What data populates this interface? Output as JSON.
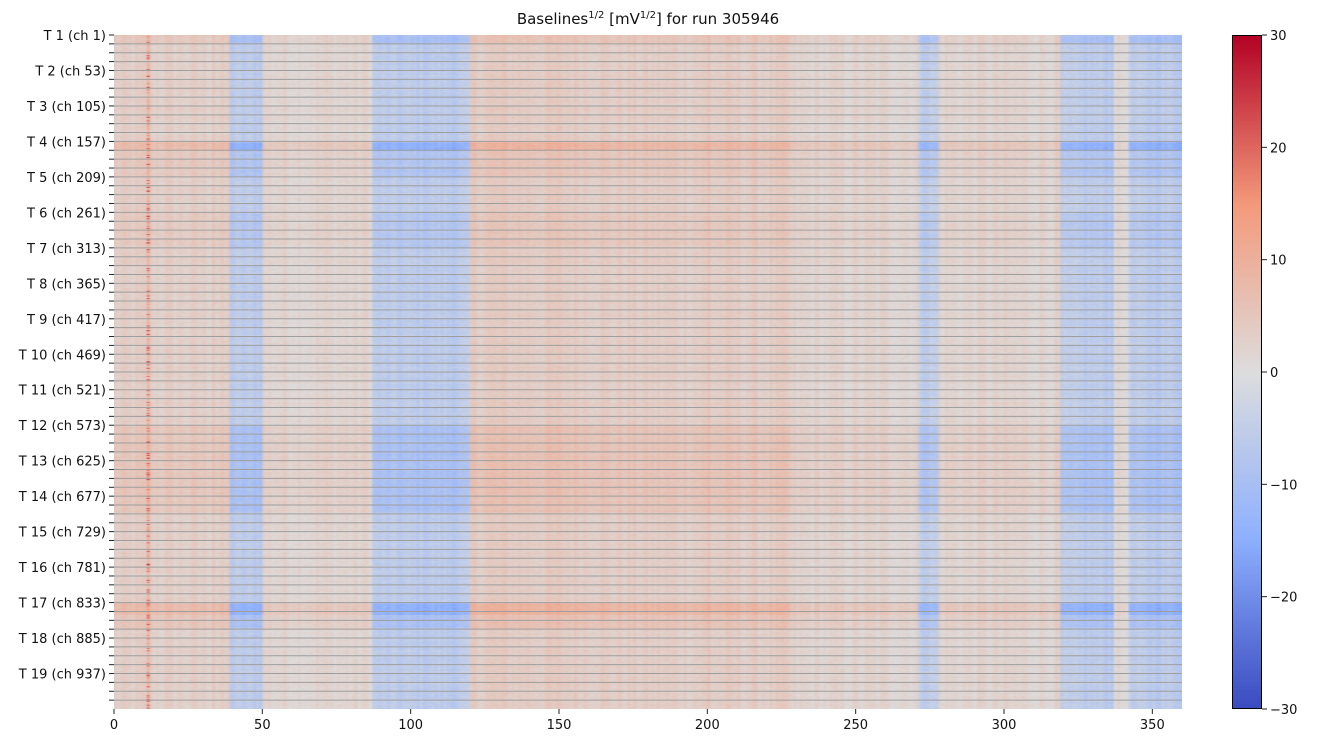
{
  "chart_data": {
    "type": "heatmap",
    "title": {
      "prefix": "Baselines",
      "sup1": "1/2",
      "mid": " [mV",
      "sup2": "1/2",
      "suffix": "] for run 305946"
    },
    "xlabel": "",
    "ylabel": "",
    "xlim": [
      0,
      360
    ],
    "x_ticks": [
      0,
      50,
      100,
      150,
      200,
      250,
      300,
      350
    ],
    "n_channels": 988,
    "channels_per_minor_tick": 13,
    "y_tick_labels": [
      "T 1 (ch 1)",
      "T 2 (ch 53)",
      "T 3 (ch 105)",
      "T 4 (ch 157)",
      "T 5 (ch 209)",
      "T 6 (ch 261)",
      "T 7 (ch 313)",
      "T 8 (ch 365)",
      "T 9 (ch 417)",
      "T 10 (ch 469)",
      "T 11 (ch 521)",
      "T 12 (ch 573)",
      "T 13 (ch 625)",
      "T 14 (ch 677)",
      "T 15 (ch 729)",
      "T 16 (ch 781)",
      "T 17 (ch 833)",
      "T 18 (ch 885)",
      "T 19 (ch 937)"
    ],
    "colormap": "coolwarm",
    "vmin": -30,
    "vmax": 30,
    "colorbar_ticks": [
      30,
      20,
      10,
      0,
      -10,
      -20,
      -30
    ],
    "column_bands": [
      {
        "from": 0,
        "to": 39,
        "value": 3
      },
      {
        "from": 39,
        "to": 50,
        "value": -6
      },
      {
        "from": 50,
        "to": 87,
        "value": 2
      },
      {
        "from": 87,
        "to": 120,
        "value": -6
      },
      {
        "from": 120,
        "to": 165,
        "value": 4
      },
      {
        "from": 165,
        "to": 228,
        "value": 3.5
      },
      {
        "from": 228,
        "to": 271,
        "value": 2
      },
      {
        "from": 271,
        "to": 278,
        "value": -5
      },
      {
        "from": 278,
        "to": 319,
        "value": 2
      },
      {
        "from": 319,
        "to": 337,
        "value": -6
      },
      {
        "from": 337,
        "to": 342,
        "value": 1
      },
      {
        "from": 342,
        "to": 360,
        "value": -6
      }
    ],
    "hot_columns": [
      {
        "x": 11,
        "value": 20
      },
      {
        "x": 33,
        "value": 8
      },
      {
        "x": 200,
        "value": 7
      }
    ],
    "row_intensity": [
      {
        "from": 0,
        "to": 13,
        "gain": 1.6
      },
      {
        "from": 157,
        "to": 170,
        "gain": 2.4
      },
      {
        "from": 170,
        "to": 209,
        "gain": 1.4
      },
      {
        "from": 261,
        "to": 313,
        "gain": 1.3
      },
      {
        "from": 573,
        "to": 700,
        "gain": 1.6
      },
      {
        "from": 833,
        "to": 850,
        "gain": 2.4
      },
      {
        "from": 850,
        "to": 870,
        "gain": 1.6
      }
    ],
    "grid": "horizontal",
    "colorbar_position": "right"
  }
}
